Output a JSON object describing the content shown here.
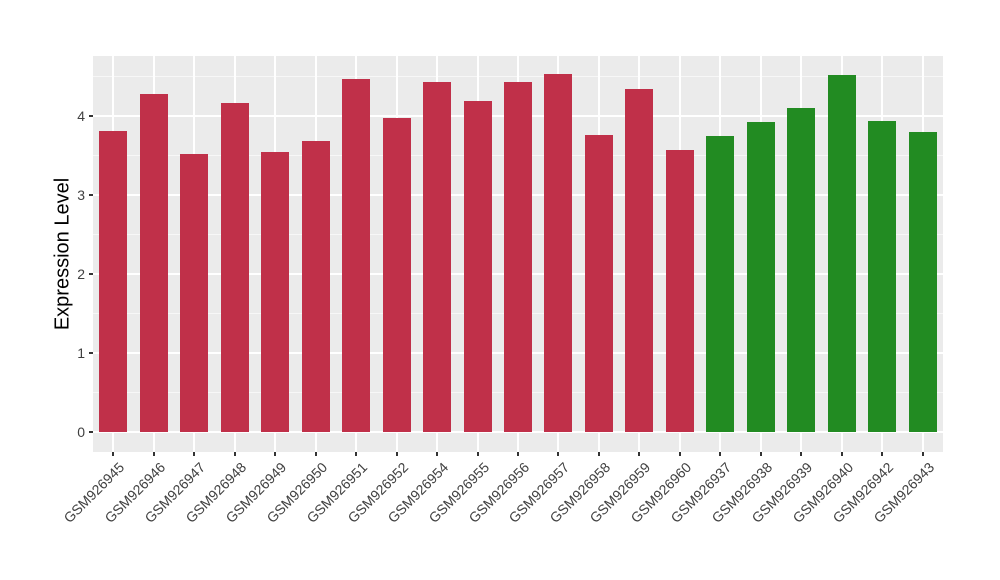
{
  "figure": {
    "background": "#FFFFFF",
    "panel_bg": "#EBEBEB",
    "grid_major_color": "#FFFFFF",
    "tick_mark_color": "#333333",
    "tick_label_color": "#404040",
    "axis_title_color": "#000000"
  },
  "chart_data": {
    "type": "bar",
    "title": "",
    "xlabel": "",
    "ylabel": "Expression Level",
    "ylim": [
      0,
      4.75
    ],
    "yticks": [
      0,
      1,
      2,
      3,
      4
    ],
    "grid": "on",
    "legend": "none",
    "categories": [
      "GSM926945",
      "GSM926946",
      "GSM926947",
      "GSM926948",
      "GSM926949",
      "GSM926950",
      "GSM926951",
      "GSM926952",
      "GSM926954",
      "GSM926955",
      "GSM926956",
      "GSM926957",
      "GSM926958",
      "GSM926959",
      "GSM926960",
      "GSM926937",
      "GSM926938",
      "GSM926939",
      "GSM926940",
      "GSM926942",
      "GSM926943"
    ],
    "values": [
      3.81,
      4.27,
      3.51,
      4.16,
      3.54,
      3.68,
      4.46,
      3.97,
      4.42,
      4.19,
      4.42,
      4.52,
      3.76,
      4.34,
      3.57,
      3.74,
      3.92,
      4.1,
      4.51,
      3.93,
      3.79
    ],
    "groups": [
      "red",
      "red",
      "red",
      "red",
      "red",
      "red",
      "red",
      "red",
      "red",
      "red",
      "red",
      "red",
      "red",
      "red",
      "red",
      "green",
      "green",
      "green",
      "green",
      "green",
      "green"
    ],
    "palette": {
      "red": "#C03049",
      "green": "#228B22"
    }
  }
}
